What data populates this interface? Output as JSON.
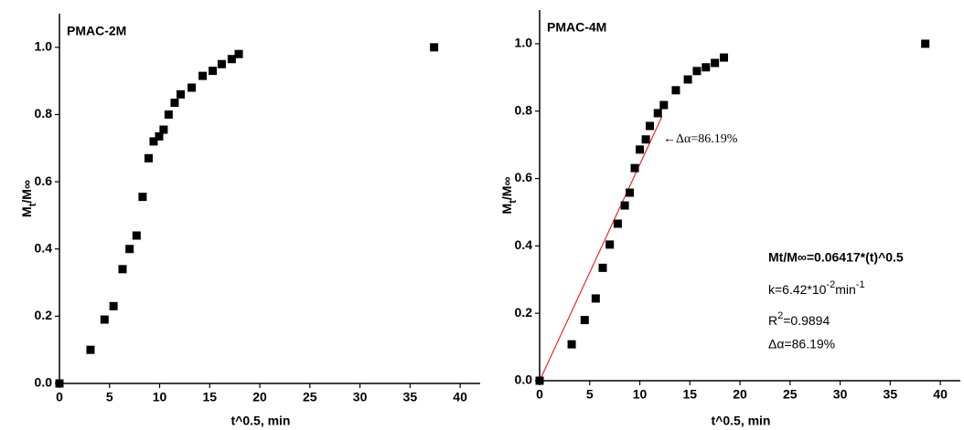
{
  "chart_data": [
    {
      "type": "scatter",
      "title": "PMAC-2M",
      "x_label": "t^0.5, min",
      "y_label": [
        "M",
        "t",
        "/M∞"
      ],
      "x": [
        0,
        3.1,
        4.5,
        5.4,
        6.3,
        7.0,
        7.7,
        8.3,
        8.9,
        9.4,
        9.95,
        10.4,
        10.9,
        11.5,
        12.1,
        13.2,
        14.3,
        15.3,
        16.2,
        17.2,
        17.9,
        37.4
      ],
      "y": [
        0,
        0.1,
        0.19,
        0.23,
        0.34,
        0.4,
        0.44,
        0.555,
        0.67,
        0.72,
        0.735,
        0.755,
        0.8,
        0.835,
        0.86,
        0.88,
        0.915,
        0.93,
        0.95,
        0.965,
        0.98,
        1.0
      ],
      "color": "#000000",
      "xlim": [
        0,
        42
      ],
      "ylim": [
        0,
        1.1
      ],
      "xticks": [
        0,
        5,
        10,
        15,
        20,
        25,
        30,
        35,
        40
      ],
      "yticks": [
        {
          "value": 0,
          "label": "0.0"
        },
        {
          "value": 0.2,
          "label": "0.2"
        },
        {
          "value": 0.4,
          "label": "0.4"
        },
        {
          "value": 0.6,
          "label": "0.6"
        },
        {
          "value": 0.8,
          "label": "0.8"
        },
        {
          "value": 1.0,
          "label": "1.0"
        }
      ]
    },
    {
      "type": "scatter",
      "title": "PMAC-4M",
      "x_label": "t^0.5, min",
      "y_label": [
        "M",
        "t",
        "/M∞"
      ],
      "x": [
        0,
        3.2,
        4.5,
        5.6,
        6.3,
        7.0,
        7.8,
        8.5,
        9.0,
        9.5,
        10.0,
        10.6,
        11.0,
        11.8,
        12.4,
        13.6,
        14.8,
        15.7,
        16.6,
        17.5,
        18.4,
        38.5
      ],
      "y": [
        0,
        0.108,
        0.18,
        0.244,
        0.335,
        0.404,
        0.466,
        0.52,
        0.558,
        0.631,
        0.686,
        0.716,
        0.756,
        0.794,
        0.818,
        0.862,
        0.894,
        0.919,
        0.93,
        0.943,
        0.959,
        1.0
      ],
      "color": "#000000",
      "fit_line": {
        "x": [
          0,
          12.2
        ],
        "y": [
          0,
          0.783
        ],
        "color": "#ff0000"
      },
      "xlim": [
        0,
        42
      ],
      "ylim": [
        0,
        1.1
      ],
      "xticks": [
        0,
        5,
        10,
        15,
        20,
        25,
        30,
        35,
        40
      ],
      "yticks": [
        {
          "value": 0,
          "label": "0.0"
        },
        {
          "value": 0.2,
          "label": "0.2"
        },
        {
          "value": 0.4,
          "label": "0.4"
        },
        {
          "value": 0.6,
          "label": "0.6"
        },
        {
          "value": 0.8,
          "label": "0.8"
        },
        {
          "value": 1.0,
          "label": "1.0"
        }
      ],
      "arrow_annotation": "←Δα=86.19%",
      "equation": "Mt/M∞=0.06417*(t)^0.5",
      "k_text": [
        "k=6.42*10",
        "-2",
        "min",
        "-1"
      ],
      "r2_text": [
        "R",
        "2",
        "=0.9894"
      ],
      "delta_text": "Δα=86.19%"
    }
  ]
}
